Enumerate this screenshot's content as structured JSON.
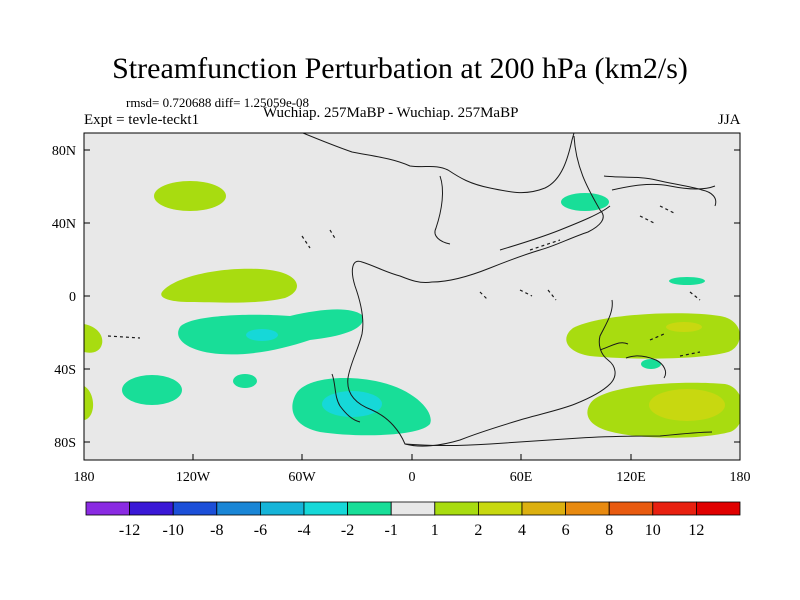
{
  "title": "Streamfunction Perturbation at 200 hPa (km2/s)",
  "stats": "rmsd= 0.720688 diff= 1.25059e-08",
  "left_label": "Expt = tevle-teckt1",
  "center_label": "Wuchiap. 257MaBP - Wuchiap. 257MaBP",
  "right_label": "JJA",
  "axes": {
    "lon_ticks": [
      "180",
      "120W",
      "60W",
      "0",
      "60E",
      "120E",
      "180"
    ],
    "lat_ticks": [
      "80N",
      "40N",
      "0",
      "40S",
      "80S"
    ]
  },
  "colorbar": {
    "labels": [
      "-12",
      "-10",
      "-8",
      "-6",
      "-4",
      "-2",
      "-1",
      "1",
      "2",
      "4",
      "6",
      "8",
      "10",
      "12"
    ],
    "colors": [
      "#8a2be2",
      "#3a18d6",
      "#1c4fd8",
      "#1a86d6",
      "#16b4d8",
      "#16d8d8",
      "#18de98",
      "#e8e8e8",
      "#a8dc10",
      "#c8d810",
      "#dcb010",
      "#e88a10",
      "#e85a10",
      "#e82010",
      "#e00000"
    ]
  },
  "colors": {
    "background": "#e8e8e8",
    "coast": "#1a1a1a"
  }
}
